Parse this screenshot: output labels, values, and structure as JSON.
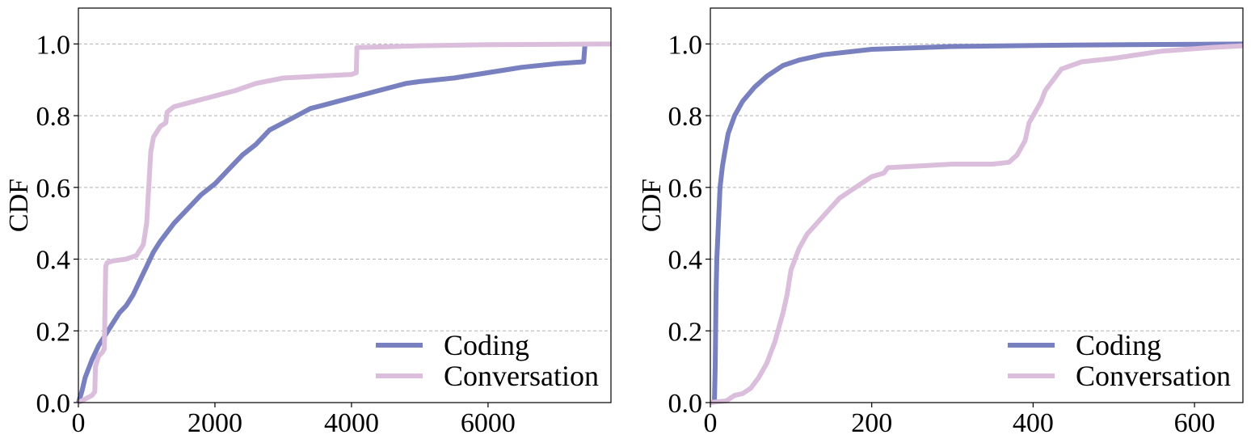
{
  "chart_data": [
    {
      "type": "line",
      "title": "",
      "xlabel": "",
      "ylabel": "CDF",
      "xlim": [
        0,
        7800
      ],
      "ylim": [
        0,
        1.1
      ],
      "xticks": [
        0,
        2000,
        4000,
        6000
      ],
      "xtick_labels": [
        "0",
        "2000",
        "4000",
        "6000"
      ],
      "yticks": [
        0,
        0.2,
        0.4,
        0.6,
        0.8,
        1.0
      ],
      "ytick_labels": [
        "0.0",
        "0.2",
        "0.4",
        "0.6",
        "0.8",
        "1.0"
      ],
      "grid": "horizontal dashed",
      "legend_position": "lower right",
      "series": [
        {
          "name": "Coding",
          "color": "#7880c0",
          "points": [
            [
              0,
              0
            ],
            [
              50,
              0.03
            ],
            [
              100,
              0.07
            ],
            [
              200,
              0.12
            ],
            [
              300,
              0.16
            ],
            [
              400,
              0.19
            ],
            [
              500,
              0.22
            ],
            [
              600,
              0.25
            ],
            [
              700,
              0.27
            ],
            [
              800,
              0.3
            ],
            [
              900,
              0.34
            ],
            [
              1000,
              0.38
            ],
            [
              1100,
              0.42
            ],
            [
              1200,
              0.45
            ],
            [
              1400,
              0.5
            ],
            [
              1600,
              0.54
            ],
            [
              1800,
              0.58
            ],
            [
              2000,
              0.61
            ],
            [
              2200,
              0.65
            ],
            [
              2400,
              0.69
            ],
            [
              2600,
              0.72
            ],
            [
              2800,
              0.76
            ],
            [
              3000,
              0.78
            ],
            [
              3200,
              0.8
            ],
            [
              3400,
              0.82
            ],
            [
              3600,
              0.83
            ],
            [
              3800,
              0.84
            ],
            [
              4000,
              0.85
            ],
            [
              4200,
              0.86
            ],
            [
              4400,
              0.87
            ],
            [
              4600,
              0.88
            ],
            [
              4800,
              0.89
            ],
            [
              5000,
              0.895
            ],
            [
              5500,
              0.905
            ],
            [
              6000,
              0.92
            ],
            [
              6500,
              0.935
            ],
            [
              7000,
              0.945
            ],
            [
              7400,
              0.95
            ],
            [
              7420,
              1.0
            ]
          ]
        },
        {
          "name": "Conversation",
          "color": "#dabedc",
          "points": [
            [
              0,
              0
            ],
            [
              200,
              0.02
            ],
            [
              240,
              0.03
            ],
            [
              250,
              0.1
            ],
            [
              280,
              0.12
            ],
            [
              300,
              0.13
            ],
            [
              350,
              0.14
            ],
            [
              380,
              0.15
            ],
            [
              400,
              0.38
            ],
            [
              420,
              0.39
            ],
            [
              500,
              0.395
            ],
            [
              700,
              0.4
            ],
            [
              850,
              0.41
            ],
            [
              950,
              0.44
            ],
            [
              1000,
              0.5
            ],
            [
              1030,
              0.6
            ],
            [
              1060,
              0.7
            ],
            [
              1100,
              0.74
            ],
            [
              1200,
              0.77
            ],
            [
              1280,
              0.78
            ],
            [
              1300,
              0.81
            ],
            [
              1400,
              0.825
            ],
            [
              1700,
              0.84
            ],
            [
              2000,
              0.855
            ],
            [
              2300,
              0.87
            ],
            [
              2600,
              0.89
            ],
            [
              3000,
              0.905
            ],
            [
              3500,
              0.91
            ],
            [
              4000,
              0.915
            ],
            [
              4070,
              0.92
            ],
            [
              4080,
              0.99
            ],
            [
              4500,
              0.992
            ],
            [
              5000,
              0.995
            ],
            [
              6000,
              0.998
            ],
            [
              7800,
              1.0
            ]
          ]
        }
      ]
    },
    {
      "type": "line",
      "title": "",
      "xlabel": "",
      "ylabel": "CDF",
      "xlim": [
        0,
        660
      ],
      "ylim": [
        0,
        1.1
      ],
      "xticks": [
        0,
        200,
        400,
        600
      ],
      "xtick_labels": [
        "0",
        "200",
        "400",
        "600"
      ],
      "yticks": [
        0,
        0.2,
        0.4,
        0.6,
        0.8,
        1.0
      ],
      "ytick_labels": [
        "0.0",
        "0.2",
        "0.4",
        "0.6",
        "0.8",
        "1.0"
      ],
      "grid": "horizontal dashed",
      "legend_position": "lower right",
      "series": [
        {
          "name": "Coding",
          "color": "#7880c0",
          "points": [
            [
              5,
              0
            ],
            [
              6,
              0.1
            ],
            [
              7,
              0.3
            ],
            [
              8,
              0.4
            ],
            [
              10,
              0.5
            ],
            [
              12,
              0.6
            ],
            [
              15,
              0.66
            ],
            [
              18,
              0.7
            ],
            [
              22,
              0.75
            ],
            [
              30,
              0.8
            ],
            [
              40,
              0.84
            ],
            [
              55,
              0.88
            ],
            [
              70,
              0.91
            ],
            [
              90,
              0.94
            ],
            [
              110,
              0.955
            ],
            [
              140,
              0.97
            ],
            [
              200,
              0.985
            ],
            [
              300,
              0.993
            ],
            [
              450,
              0.997
            ],
            [
              660,
              1.0
            ]
          ]
        },
        {
          "name": "Conversation",
          "color": "#dabedc",
          "points": [
            [
              0,
              0
            ],
            [
              20,
              0.005
            ],
            [
              30,
              0.02
            ],
            [
              40,
              0.025
            ],
            [
              50,
              0.04
            ],
            [
              60,
              0.07
            ],
            [
              70,
              0.11
            ],
            [
              80,
              0.17
            ],
            [
              90,
              0.25
            ],
            [
              95,
              0.3
            ],
            [
              100,
              0.37
            ],
            [
              110,
              0.43
            ],
            [
              120,
              0.47
            ],
            [
              140,
              0.52
            ],
            [
              160,
              0.57
            ],
            [
              180,
              0.6
            ],
            [
              200,
              0.63
            ],
            [
              215,
              0.64
            ],
            [
              220,
              0.655
            ],
            [
              260,
              0.66
            ],
            [
              300,
              0.665
            ],
            [
              350,
              0.665
            ],
            [
              370,
              0.67
            ],
            [
              380,
              0.69
            ],
            [
              390,
              0.73
            ],
            [
              395,
              0.78
            ],
            [
              400,
              0.8
            ],
            [
              410,
              0.84
            ],
            [
              415,
              0.87
            ],
            [
              425,
              0.9
            ],
            [
              435,
              0.93
            ],
            [
              460,
              0.95
            ],
            [
              500,
              0.96
            ],
            [
              560,
              0.98
            ],
            [
              620,
              0.99
            ],
            [
              660,
              0.995
            ]
          ]
        }
      ]
    }
  ]
}
